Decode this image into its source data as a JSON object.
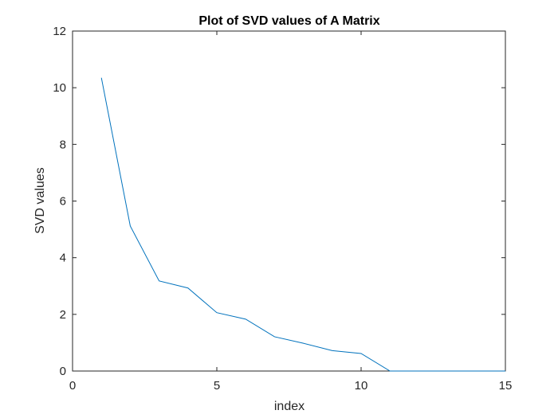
{
  "chart_data": {
    "type": "line",
    "title": "Plot of SVD values of A Matrix",
    "xlabel": "index",
    "ylabel": "SVD values",
    "xlim": [
      0,
      15
    ],
    "ylim": [
      0,
      12
    ],
    "xticks": [
      0,
      5,
      10,
      15
    ],
    "yticks": [
      0,
      2,
      4,
      6,
      8,
      10,
      12
    ],
    "x_tick_labels": [
      "0",
      "5",
      "10",
      "15"
    ],
    "y_tick_labels": [
      "0",
      "2",
      "4",
      "6",
      "8",
      "10",
      "12"
    ],
    "grid": false,
    "legend": false,
    "series": [
      {
        "color": "#0072BD",
        "x": [
          1,
          2,
          3,
          4,
          5,
          6,
          7,
          8,
          9,
          10,
          11,
          12,
          13,
          14,
          15
        ],
        "y": [
          10.35,
          5.12,
          3.18,
          2.93,
          2.06,
          1.83,
          1.21,
          0.98,
          0.72,
          0.62,
          0.0,
          0.0,
          0.0,
          0.0,
          0.0
        ]
      }
    ]
  }
}
